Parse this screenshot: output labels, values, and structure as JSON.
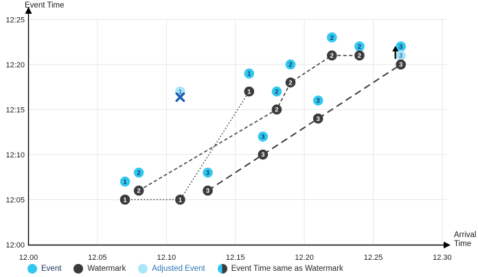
{
  "chart_data": {
    "type": "scatter",
    "x_axis": {
      "label": "Arrival Time",
      "label_lines": [
        "Arrival",
        "Time"
      ],
      "min": 12.0,
      "max": 12.3,
      "ticks": [
        "12.00",
        "12.05",
        "12.10",
        "12.15",
        "12.20",
        "12.25",
        "12.30"
      ]
    },
    "y_axis": {
      "label": "Event Time",
      "min": "12:00",
      "max": "12:25",
      "ticks": [
        "12:00",
        "12:05",
        "12:10",
        "12:15",
        "12:20",
        "12:25"
      ]
    },
    "grid": true,
    "legend_position": "bottom",
    "series": [
      {
        "label": "1",
        "line_style": "dotted",
        "events": [
          {
            "x": 12.07,
            "t": "12:07"
          },
          {
            "x": 12.16,
            "t": "12:19"
          }
        ],
        "watermarks": [
          {
            "x": 12.07,
            "t": "12:05"
          },
          {
            "x": 12.11,
            "t": "12:05"
          },
          {
            "x": 12.16,
            "t": "12:17"
          }
        ],
        "adjusted": [
          {
            "x": 12.11,
            "t": "12:17",
            "marker": "crossed-out-x"
          }
        ]
      },
      {
        "label": "2",
        "line_style": "dashed",
        "events": [
          {
            "x": 12.08,
            "t": "12:08"
          },
          {
            "x": 12.18,
            "t": "12:17"
          },
          {
            "x": 12.19,
            "t": "12:20"
          },
          {
            "x": 12.22,
            "t": "12:23"
          },
          {
            "x": 12.24,
            "t": "12:22"
          }
        ],
        "watermarks": [
          {
            "x": 12.08,
            "t": "12:06"
          },
          {
            "x": 12.18,
            "t": "12:15"
          },
          {
            "x": 12.19,
            "t": "12:18"
          },
          {
            "x": 12.22,
            "t": "12:21"
          },
          {
            "x": 12.24,
            "t": "12:21"
          }
        ],
        "adjusted": []
      },
      {
        "label": "3",
        "line_style": "long-dash",
        "events": [
          {
            "x": 12.13,
            "t": "12:08"
          },
          {
            "x": 12.17,
            "t": "12:12"
          },
          {
            "x": 12.21,
            "t": "12:16"
          },
          {
            "x": 12.27,
            "t": "12:22"
          }
        ],
        "watermarks": [
          {
            "x": 12.13,
            "t": "12:06"
          },
          {
            "x": 12.17,
            "t": "12:10"
          },
          {
            "x": 12.21,
            "t": "12:14"
          },
          {
            "x": 12.27,
            "t": "12:20"
          }
        ],
        "adjusted": [
          {
            "x": 12.27,
            "t": "12:21",
            "marker": "moved-up-arrow"
          }
        ]
      }
    ],
    "legend": [
      {
        "label": "Event",
        "swatch": "event",
        "text_color": "#17365D"
      },
      {
        "label": "Watermark",
        "swatch": "watermark",
        "text_color": "#262626"
      },
      {
        "label": "Adjusted Event",
        "swatch": "adjusted",
        "text_color": "#2E75B6"
      },
      {
        "label": "Event Time same as Watermark",
        "swatch": "half",
        "text_color": "#262626"
      }
    ]
  },
  "colors": {
    "event": "#31C7F0",
    "watermark": "#3B3B3D",
    "adjusted": "#AAE6F8",
    "event_number": "#17365D",
    "watermark_number": "#FFFFFF",
    "adjusted_number": "#2E75B6",
    "line": "#3F3F41",
    "grid": "#E7E7E7",
    "axis": "#000000",
    "tick_text": "#1A1A1A",
    "x_mark": "#1D5FB0",
    "arrow": "#000000"
  }
}
